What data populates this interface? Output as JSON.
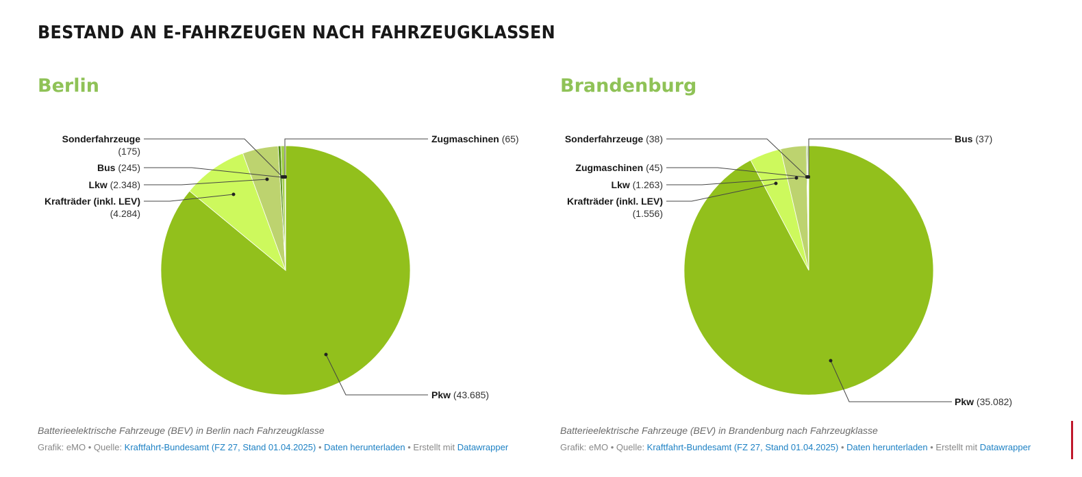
{
  "title": "BESTAND AN E-FAHRZEUGEN NACH FAHRZEUGKLASSEN",
  "chart_data": [
    {
      "type": "pie",
      "title": "Berlin",
      "description": "Batterieelektrische Fahrzeuge (BEV) in Berlin nach Fahrzeugklasse",
      "slices": [
        {
          "label": "Pkw",
          "value": 43685,
          "display": "(43.685)",
          "color": "#92c01c"
        },
        {
          "label": "Krafträder (inkl. LEV)",
          "value": 4284,
          "display": "(4.284)",
          "color": "#cdf95d"
        },
        {
          "label": "Lkw",
          "value": 2348,
          "display": "(2.348)",
          "color": "#bdd36f"
        },
        {
          "label": "Sonderfahrzeuge",
          "value": 175,
          "display": "(175)",
          "color": "#4f8a10"
        },
        {
          "label": "Bus",
          "value": 245,
          "display": "(245)",
          "color": "#a3d14a"
        },
        {
          "label": "Zugmaschinen",
          "value": 65,
          "display": "(65)",
          "color": "#d6e8a8"
        }
      ]
    },
    {
      "type": "pie",
      "title": "Brandenburg",
      "description": "Batterieelektrische Fahrzeuge (BEV) in Brandenburg nach Fahrzeugklasse",
      "slices": [
        {
          "label": "Pkw",
          "value": 35082,
          "display": "(35.082)",
          "color": "#92c01c"
        },
        {
          "label": "Krafträder (inkl. LEV)",
          "value": 1556,
          "display": "(1.556)",
          "color": "#cdf95d"
        },
        {
          "label": "Lkw",
          "value": 1263,
          "display": "(1.263)",
          "color": "#bdd36f"
        },
        {
          "label": "Zugmaschinen",
          "value": 45,
          "display": "(45)",
          "color": "#4f8a10"
        },
        {
          "label": "Sonderfahrzeuge",
          "value": 38,
          "display": "(38)",
          "color": "#a3d14a"
        },
        {
          "label": "Bus",
          "value": 37,
          "display": "(37)",
          "color": "#d6e8a8"
        }
      ]
    }
  ],
  "footer": {
    "grafik": "Grafik: eMO",
    "sep": " • ",
    "quelle": "Quelle: ",
    "source_link": "Kraftfahrt-Bundesamt (FZ 27, Stand 01.04.2025)",
    "download": "Daten herunterladen",
    "erstellt": "Erstellt mit ",
    "datawrapper": "Datawrapper"
  }
}
